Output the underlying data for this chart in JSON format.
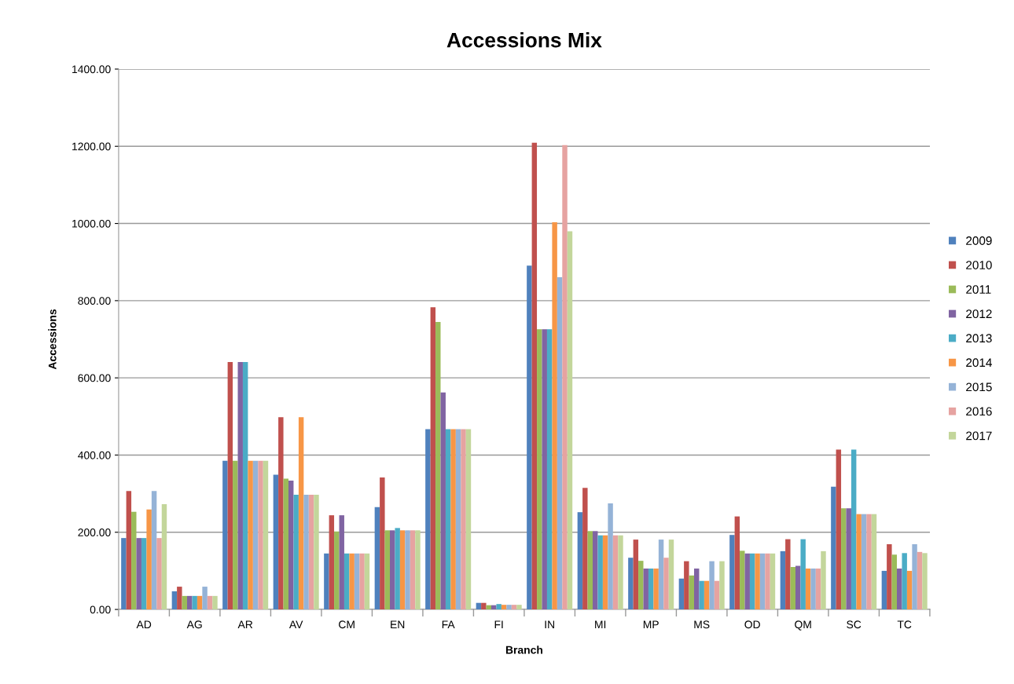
{
  "chart_data": {
    "type": "bar",
    "title": "Accessions Mix",
    "xlabel": "Branch",
    "ylabel": "Accessions",
    "categories": [
      "AD",
      "AG",
      "AR",
      "AV",
      "CM",
      "EN",
      "FA",
      "FI",
      "IN",
      "MI",
      "MP",
      "MS",
      "OD",
      "QM",
      "SC",
      "TC"
    ],
    "series": [
      {
        "name": "2009",
        "color": "#4f81bd",
        "values": [
          185,
          47,
          385,
          349,
          145,
          265,
          467,
          17,
          891,
          252,
          134,
          80,
          193,
          151,
          318,
          100
        ]
      },
      {
        "name": "2010",
        "color": "#c0504d",
        "values": [
          307,
          59,
          641,
          498,
          244,
          342,
          783,
          17,
          1209,
          315,
          181,
          125,
          241,
          182,
          414,
          169
        ]
      },
      {
        "name": "2011",
        "color": "#9bbb59",
        "values": [
          253,
          35,
          385,
          339,
          202,
          205,
          745,
          11,
          726,
          203,
          126,
          88,
          152,
          110,
          262,
          142
        ]
      },
      {
        "name": "2012",
        "color": "#8064a2",
        "values": [
          185,
          35,
          641,
          334,
          244,
          205,
          562,
          11,
          726,
          203,
          106,
          106,
          145,
          113,
          262,
          106
        ]
      },
      {
        "name": "2013",
        "color": "#4bacc6",
        "values": [
          185,
          35,
          641,
          297,
          145,
          211,
          467,
          14,
          726,
          192,
          106,
          74,
          145,
          182,
          414,
          146
        ]
      },
      {
        "name": "2014",
        "color": "#f79646",
        "values": [
          259,
          35,
          385,
          498,
          145,
          205,
          467,
          12,
          1003,
          192,
          106,
          74,
          145,
          106,
          247,
          100
        ]
      },
      {
        "name": "2015",
        "color": "#95b3d7",
        "values": [
          307,
          59,
          385,
          297,
          145,
          205,
          467,
          12,
          861,
          275,
          181,
          125,
          145,
          106,
          247,
          169
        ]
      },
      {
        "name": "2016",
        "color": "#e6a3a1",
        "values": [
          185,
          35,
          385,
          297,
          145,
          205,
          467,
          12,
          1203,
          192,
          134,
          74,
          145,
          106,
          247,
          149
        ]
      },
      {
        "name": "2017",
        "color": "#c3d69b",
        "values": [
          273,
          35,
          385,
          297,
          145,
          205,
          467,
          12,
          980,
          192,
          181,
          125,
          145,
          151,
          247,
          146
        ]
      }
    ],
    "ylim": [
      0,
      1400
    ],
    "yticks": [
      {
        "value": 0,
        "label": "0.00"
      },
      {
        "value": 200,
        "label": "200.00"
      },
      {
        "value": 400,
        "label": "400.00"
      },
      {
        "value": 600,
        "label": "600.00"
      },
      {
        "value": 800,
        "label": "800.00"
      },
      {
        "value": 1000,
        "label": "1000.00"
      },
      {
        "value": 1200,
        "label": "1200.00"
      },
      {
        "value": 1400,
        "label": "1400.00"
      }
    ],
    "grid": "y",
    "legend": "right"
  }
}
